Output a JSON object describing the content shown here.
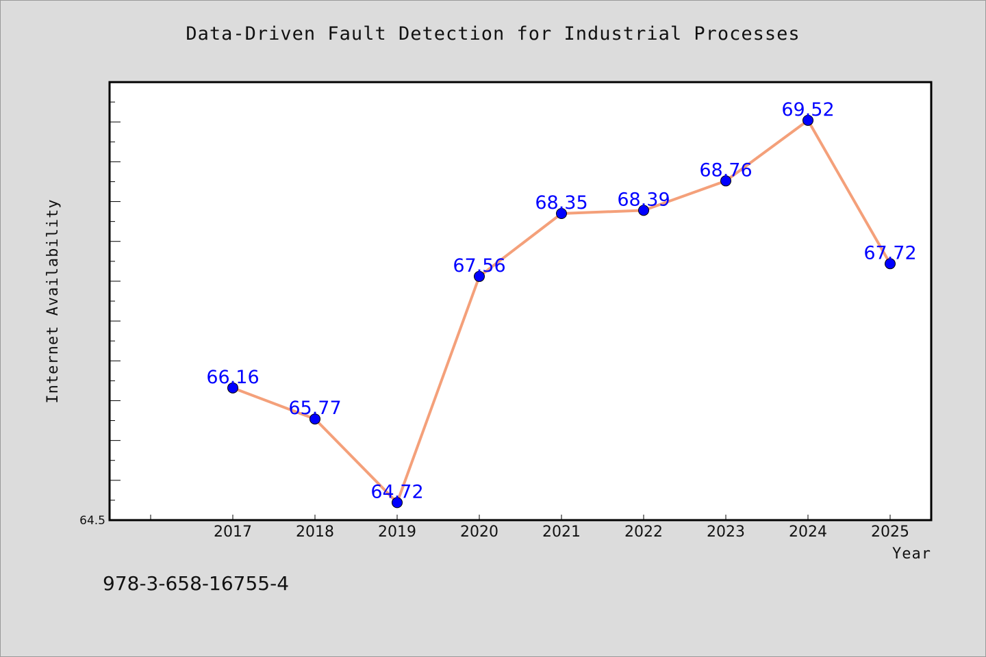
{
  "chart_data": {
    "type": "line",
    "title": "Data-Driven Fault Detection for Industrial Processes",
    "xlabel": "Year",
    "ylabel": "Internet Availability",
    "categories": [
      "2017",
      "2018",
      "2019",
      "2020",
      "2021",
      "2022",
      "2023",
      "2024",
      "2025"
    ],
    "series": [
      {
        "values": [
          66.16,
          65.77,
          64.72,
          67.56,
          68.35,
          68.39,
          68.76,
          69.52,
          67.72
        ],
        "data_labels": [
          "66.16",
          "65.77",
          "64.72",
          "67.56",
          "68.35",
          "68.39",
          "68.76",
          "69.52",
          "67.72"
        ]
      }
    ],
    "ylim": [
      64.5,
      70.0
    ],
    "ytick_labels": [
      "64.5"
    ],
    "grid": false,
    "legend": "none",
    "colors": {
      "line": "#f4a07a",
      "marker": "#0000ff",
      "data_label": "#0000ff",
      "plot_background": "#ffffff",
      "page_background": "#dcdcdc"
    }
  },
  "footer": {
    "isbn": "978-3-658-16755-4"
  }
}
